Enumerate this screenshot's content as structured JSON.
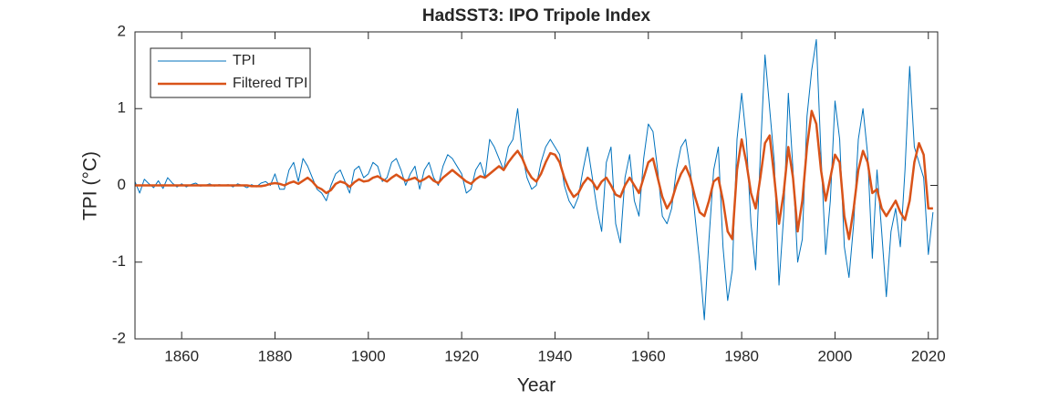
{
  "chart_data": {
    "type": "line",
    "title": "HadSST3: IPO Tripole Index",
    "xlabel": "Year",
    "ylabel": "TPI (°C)",
    "xlim": [
      1850,
      2022
    ],
    "ylim": [
      -2,
      2
    ],
    "xticks": [
      1860,
      1880,
      1900,
      1920,
      1940,
      1960,
      1980,
      2000,
      2020
    ],
    "yticks": [
      -2,
      -1,
      0,
      1,
      2
    ],
    "grid": false,
    "legend": "upper-left",
    "x": [
      1850,
      1851,
      1852,
      1853,
      1854,
      1855,
      1856,
      1857,
      1858,
      1859,
      1860,
      1861,
      1862,
      1863,
      1864,
      1865,
      1866,
      1867,
      1868,
      1869,
      1870,
      1871,
      1872,
      1873,
      1874,
      1875,
      1876,
      1877,
      1878,
      1879,
      1880,
      1881,
      1882,
      1883,
      1884,
      1885,
      1886,
      1887,
      1888,
      1889,
      1890,
      1891,
      1892,
      1893,
      1894,
      1895,
      1896,
      1897,
      1898,
      1899,
      1900,
      1901,
      1902,
      1903,
      1904,
      1905,
      1906,
      1907,
      1908,
      1909,
      1910,
      1911,
      1912,
      1913,
      1914,
      1915,
      1916,
      1917,
      1918,
      1919,
      1920,
      1921,
      1922,
      1923,
      1924,
      1925,
      1926,
      1927,
      1928,
      1929,
      1930,
      1931,
      1932,
      1933,
      1934,
      1935,
      1936,
      1937,
      1938,
      1939,
      1940,
      1941,
      1942,
      1943,
      1944,
      1945,
      1946,
      1947,
      1948,
      1949,
      1950,
      1951,
      1952,
      1953,
      1954,
      1955,
      1956,
      1957,
      1958,
      1959,
      1960,
      1961,
      1962,
      1963,
      1964,
      1965,
      1966,
      1967,
      1968,
      1969,
      1970,
      1971,
      1972,
      1973,
      1974,
      1975,
      1976,
      1977,
      1978,
      1979,
      1980,
      1981,
      1982,
      1983,
      1984,
      1985,
      1986,
      1987,
      1988,
      1989,
      1990,
      1991,
      1992,
      1993,
      1994,
      1995,
      1996,
      1997,
      1998,
      1999,
      2000,
      2001,
      2002,
      2003,
      2004,
      2005,
      2006,
      2007,
      2008,
      2009,
      2010,
      2011,
      2012,
      2013,
      2014,
      2015,
      2016,
      2017,
      2018,
      2019,
      2020,
      2021
    ],
    "series": [
      {
        "name": "TPI",
        "color": "#0072BD",
        "width": 1,
        "values": [
          0.05,
          -0.1,
          0.08,
          0.02,
          -0.03,
          0.06,
          -0.04,
          0.1,
          0.03,
          -0.02,
          0.02,
          -0.02,
          0.01,
          0.03,
          -0.01,
          0.0,
          0.02,
          -0.01,
          0.01,
          0.0,
          0.01,
          -0.02,
          0.02,
          0.0,
          -0.03,
          0.01,
          -0.02,
          0.03,
          0.05,
          0.0,
          0.15,
          -0.05,
          -0.05,
          0.2,
          0.3,
          0.05,
          0.35,
          0.25,
          0.1,
          -0.05,
          -0.1,
          -0.2,
          0.0,
          0.15,
          0.2,
          0.05,
          -0.1,
          0.2,
          0.25,
          0.1,
          0.15,
          0.3,
          0.25,
          0.05,
          0.1,
          0.3,
          0.35,
          0.2,
          0.0,
          0.15,
          0.25,
          -0.05,
          0.2,
          0.3,
          0.1,
          0.0,
          0.25,
          0.4,
          0.35,
          0.25,
          0.15,
          -0.1,
          -0.05,
          0.2,
          0.3,
          0.1,
          0.6,
          0.5,
          0.35,
          0.2,
          0.5,
          0.6,
          1.0,
          0.4,
          0.1,
          -0.05,
          0.0,
          0.3,
          0.5,
          0.6,
          0.5,
          0.4,
          0.0,
          -0.2,
          -0.3,
          -0.15,
          0.2,
          0.5,
          0.1,
          -0.3,
          -0.6,
          0.3,
          0.5,
          -0.5,
          -0.75,
          0.1,
          0.4,
          -0.2,
          -0.4,
          0.35,
          0.8,
          0.7,
          0.2,
          -0.4,
          -0.5,
          -0.3,
          0.2,
          0.5,
          0.6,
          0.2,
          -0.4,
          -1.0,
          -1.75,
          -0.7,
          0.2,
          0.5,
          -0.8,
          -1.5,
          -1.1,
          0.6,
          1.2,
          0.6,
          -0.5,
          -1.1,
          0.4,
          1.7,
          1.0,
          0.3,
          -1.3,
          -0.4,
          1.2,
          0.2,
          -1.0,
          -0.7,
          0.9,
          1.5,
          1.9,
          0.4,
          -0.9,
          -0.2,
          1.1,
          0.6,
          -0.8,
          -1.2,
          -0.5,
          0.6,
          1.0,
          0.4,
          -0.95,
          0.2,
          -0.6,
          -1.45,
          -0.6,
          -0.3,
          -0.8,
          0.2,
          1.55,
          0.5,
          0.3,
          0.1,
          -0.9,
          -0.35
        ]
      },
      {
        "name": "Filtered TPI",
        "color": "#D95319",
        "width": 2.5,
        "values": [
          0,
          0,
          0,
          0,
          0,
          0,
          0,
          0,
          0,
          0,
          0,
          0,
          0,
          0,
          0,
          0,
          0,
          0,
          0,
          0,
          0,
          0,
          0,
          0,
          0,
          -0.01,
          -0.01,
          -0.01,
          0,
          0.02,
          0.03,
          0.02,
          0,
          0.03,
          0.05,
          0.02,
          0.06,
          0.1,
          0.05,
          -0.02,
          -0.05,
          -0.1,
          -0.06,
          0.02,
          0.05,
          0.03,
          -0.02,
          0.04,
          0.08,
          0.05,
          0.06,
          0.1,
          0.12,
          0.08,
          0.05,
          0.1,
          0.14,
          0.1,
          0.06,
          0.08,
          0.1,
          0.05,
          0.08,
          0.12,
          0.06,
          0.03,
          0.1,
          0.15,
          0.2,
          0.15,
          0.1,
          0.05,
          0.02,
          0.08,
          0.12,
          0.1,
          0.15,
          0.2,
          0.25,
          0.2,
          0.3,
          0.38,
          0.45,
          0.35,
          0.2,
          0.1,
          0.05,
          0.15,
          0.3,
          0.42,
          0.4,
          0.3,
          0.1,
          -0.05,
          -0.15,
          -0.1,
          0.02,
          0.1,
          0.05,
          -0.05,
          0.05,
          0.1,
          0.0,
          -0.12,
          -0.15,
          0.0,
          0.1,
          0.0,
          -0.1,
          0.1,
          0.3,
          0.35,
          0.1,
          -0.15,
          -0.3,
          -0.2,
          0.0,
          0.15,
          0.25,
          0.1,
          -0.15,
          -0.35,
          -0.4,
          -0.2,
          0.05,
          0.1,
          -0.2,
          -0.6,
          -0.7,
          0.2,
          0.6,
          0.3,
          -0.1,
          -0.3,
          0.1,
          0.55,
          0.65,
          0.1,
          -0.5,
          -0.1,
          0.5,
          0.1,
          -0.6,
          -0.2,
          0.5,
          0.97,
          0.8,
          0.2,
          -0.2,
          0.1,
          0.4,
          0.3,
          -0.4,
          -0.7,
          -0.3,
          0.2,
          0.45,
          0.3,
          -0.1,
          -0.05,
          -0.3,
          -0.4,
          -0.3,
          -0.2,
          -0.35,
          -0.45,
          -0.2,
          0.3,
          0.55,
          0.4,
          -0.3,
          -0.3
        ]
      }
    ]
  }
}
